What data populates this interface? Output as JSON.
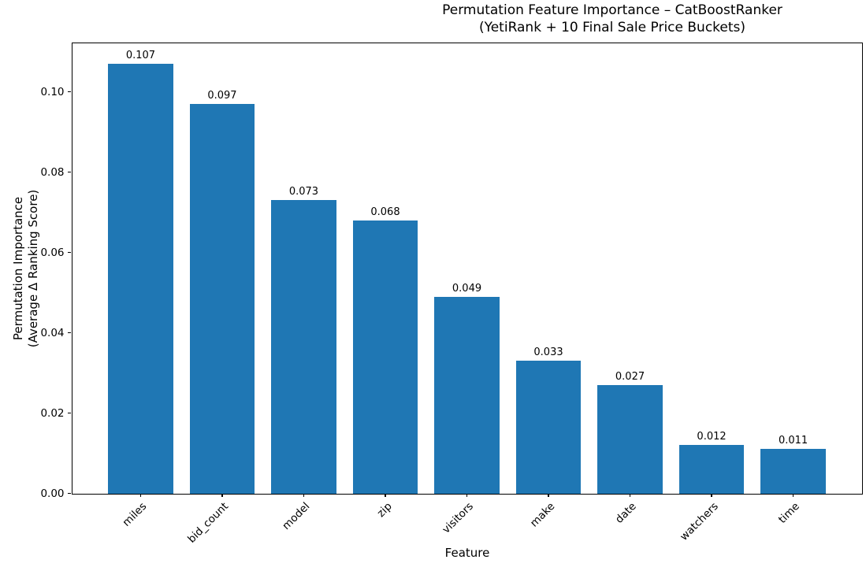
{
  "chart_data": {
    "type": "bar",
    "title": "Permutation Feature Importance – CatBoostRanker",
    "subtitle": "(YetiRank + 10 Final Sale Price Buckets)",
    "xlabel": "Feature",
    "ylabel_line1": "Permutation Importance",
    "ylabel_line2": "(Average Δ Ranking Score)",
    "categories": [
      "miles",
      "bid_count",
      "model",
      "zip",
      "visitors",
      "make",
      "date",
      "watchers",
      "time"
    ],
    "values": [
      0.107,
      0.097,
      0.073,
      0.068,
      0.049,
      0.033,
      0.027,
      0.012,
      0.011
    ],
    "bar_labels": [
      "0.107",
      "0.097",
      "0.073",
      "0.068",
      "0.049",
      "0.033",
      "0.027",
      "0.012",
      "0.011"
    ],
    "ytick_labels": [
      "0.00",
      "0.02",
      "0.04",
      "0.06",
      "0.08",
      "0.10"
    ],
    "yticks": [
      0.0,
      0.02,
      0.04,
      0.06,
      0.08,
      0.1
    ],
    "ylim": [
      0,
      0.1122
    ],
    "bar_color": "#1f77b4",
    "spine_color": "#000000",
    "grid": false,
    "legend_position": "none"
  }
}
